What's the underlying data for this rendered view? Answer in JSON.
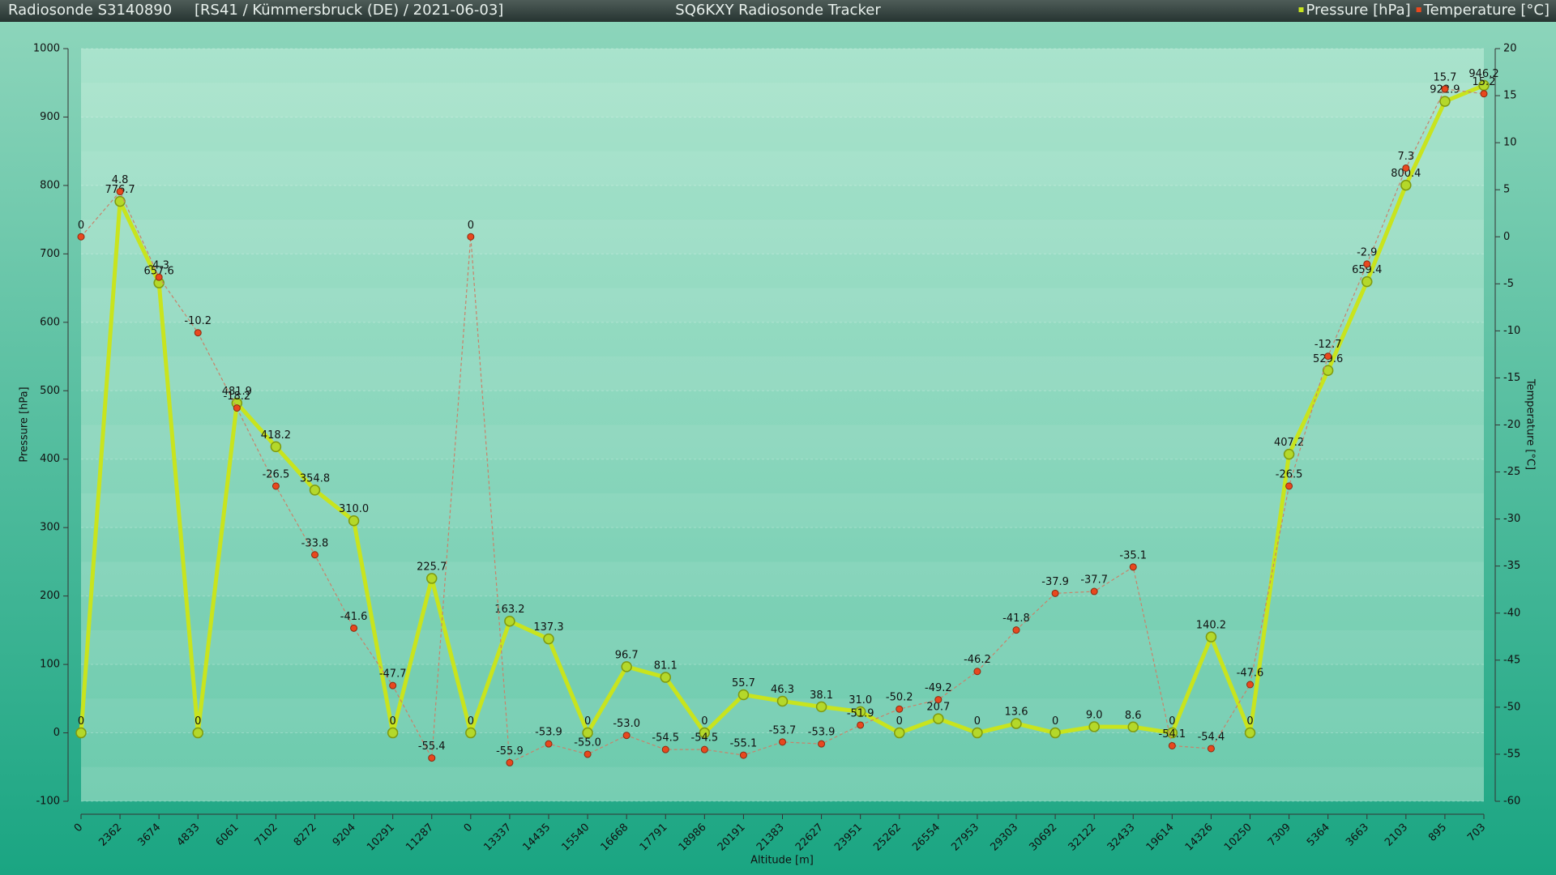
{
  "chart_data": {
    "type": "line",
    "sonde": "Radiosonde S3140890",
    "subtitle": "[RS41 / Kümmersbruck (DE) / 2021-06-03]",
    "title": "SQ6KXY Radiosonde Tracker",
    "x_label": "Altitude [m]",
    "y_label": "Pressure [hPa]",
    "y2_label": "Temperature [°C]",
    "categories": [
      "0",
      "2362",
      "3674",
      "4833",
      "6061",
      "7102",
      "8272",
      "9204",
      "10291",
      "11287",
      "0",
      "13337",
      "14435",
      "15540",
      "16668",
      "17791",
      "18986",
      "20191",
      "21383",
      "22627",
      "23951",
      "25262",
      "26554",
      "27953",
      "29303",
      "30692",
      "32122",
      "32433",
      "19614",
      "14326",
      "10250",
      "7309",
      "5364",
      "3663",
      "2103",
      "895",
      "703"
    ],
    "series": [
      {
        "name": "Pressure [hPa]",
        "color": "#c8e41e",
        "values": [
          0,
          776.7,
          657.6,
          0,
          481.9,
          418.2,
          354.8,
          310.0,
          0,
          225.7,
          0,
          163.2,
          137.3,
          0,
          96.7,
          81.1,
          0,
          55.7,
          46.3,
          38.1,
          31.0,
          0,
          20.7,
          0,
          13.6,
          0,
          9.0,
          8.6,
          0,
          140.2,
          0,
          407.2,
          529.6,
          659.4,
          800.4,
          922.9,
          946.2
        ],
        "value_labels": [
          "0",
          "776.7",
          "657.6",
          "0",
          "481.9",
          "418.2",
          "354.8",
          "310.0",
          "0",
          "225.7",
          "0",
          "163.2",
          "137.3",
          "0",
          "96.7",
          "81.1",
          "0",
          "55.7",
          "46.3",
          "38.1",
          "31.0",
          "0",
          "20.7",
          "0",
          "13.6",
          "0",
          "9.0",
          "8.6",
          "0",
          "140.2",
          "0",
          "407.2",
          "529.6",
          "659.4",
          "800.4",
          "922.9",
          "946.2"
        ]
      },
      {
        "name": "Temperature [°C]",
        "color": "#e8481e",
        "axis": "y2",
        "values": [
          0,
          4.8,
          -4.3,
          -10.2,
          -18.2,
          -26.5,
          -33.8,
          -41.6,
          -47.7,
          -55.4,
          0,
          -55.9,
          -53.9,
          -55.0,
          -53.0,
          -54.5,
          -54.5,
          -55.1,
          -53.7,
          -53.9,
          -51.9,
          -50.2,
          -49.2,
          -46.2,
          -41.8,
          -37.9,
          -37.7,
          -35.1,
          -54.1,
          -54.4,
          -47.6,
          -26.5,
          -12.7,
          -2.9,
          7.3,
          15.7,
          15.2
        ],
        "value_labels": [
          "0",
          "4.8",
          "-4.3",
          "-10.2",
          "-18.2",
          "-26.5",
          "-33.8",
          "-41.6",
          "-47.7",
          "-55.4",
          "0",
          "-55.9",
          "-53.9",
          "-55.0",
          "-53.0",
          "-54.5",
          "-54.5",
          "-55.1",
          "-53.7",
          "-53.9",
          "-51.9",
          "-50.2",
          "-49.2",
          "-46.2",
          "-41.8",
          "-37.9",
          "-37.7",
          "-35.1",
          "-54.1",
          "-54.4",
          "-47.6",
          "-26.5",
          "-12.7",
          "-2.9",
          "7.3",
          "15.7",
          "15.2"
        ]
      }
    ],
    "ylim": [
      -100,
      1000
    ],
    "yticks": [
      -100,
      0,
      100,
      200,
      300,
      400,
      500,
      600,
      700,
      800,
      900,
      1000
    ],
    "y2lim": [
      -60,
      20
    ],
    "y2ticks": [
      -60,
      -55,
      -50,
      -45,
      -40,
      -35,
      -30,
      -25,
      -20,
      -15,
      -10,
      -5,
      0,
      5,
      10,
      15,
      20
    ],
    "grid": true,
    "legend": "top-right"
  }
}
